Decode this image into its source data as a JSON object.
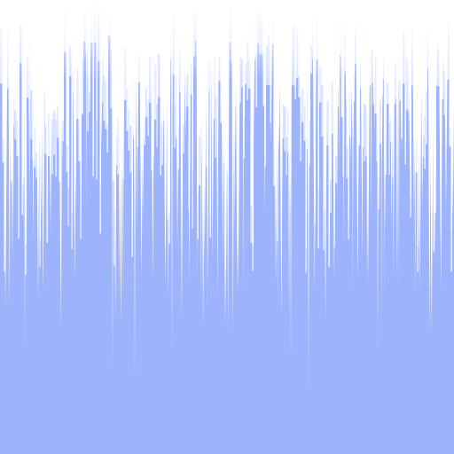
{
  "artwork": {
    "description_visible_text": "",
    "colors": {
      "background": "#ffffff",
      "fill": "#9db3fb",
      "fill_light": "#c4d2fd"
    },
    "style": "vertical-streak pattern: light periwinkle blue field with thin white vertical slivers descending from a white top band"
  }
}
